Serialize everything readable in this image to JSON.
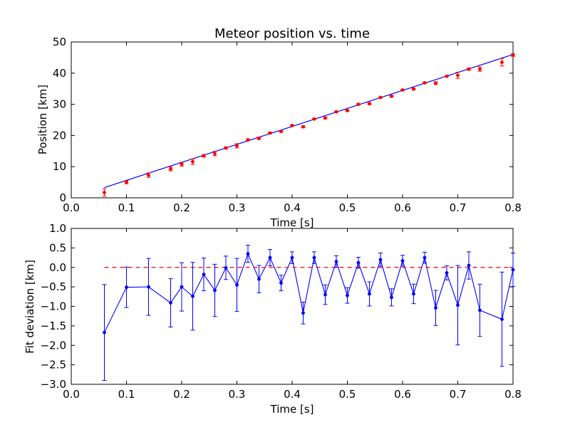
{
  "chart_data": [
    {
      "type": "scatter",
      "title": "Meteor position vs. time",
      "xlabel": "Time [s]",
      "ylabel": "Position [km]",
      "xlim": [
        0.0,
        0.8
      ],
      "ylim": [
        0,
        50
      ],
      "xticks": [
        "0.0",
        "0.1",
        "0.2",
        "0.3",
        "0.4",
        "0.5",
        "0.6",
        "0.7",
        "0.8"
      ],
      "yticks": [
        "0",
        "10",
        "20",
        "30",
        "40",
        "50"
      ],
      "grid": false,
      "colors": {
        "points": "#ff0000",
        "fit": "#0000ff"
      },
      "series": [
        {
          "kind": "errorbar-points",
          "x": [
            0.06,
            0.1,
            0.14,
            0.18,
            0.2,
            0.22,
            0.24,
            0.26,
            0.28,
            0.3,
            0.32,
            0.34,
            0.36,
            0.38,
            0.4,
            0.42,
            0.44,
            0.46,
            0.48,
            0.5,
            0.52,
            0.54,
            0.56,
            0.58,
            0.6,
            0.62,
            0.64,
            0.66,
            0.68,
            0.7,
            0.72,
            0.74,
            0.78,
            0.8
          ],
          "y": [
            1.7,
            5.0,
            7.3,
            9.3,
            10.8,
            11.6,
            13.5,
            14.2,
            16.0,
            16.7,
            18.6,
            19.1,
            20.8,
            21.3,
            23.2,
            22.8,
            25.3,
            25.6,
            27.6,
            28.0,
            30.0,
            30.2,
            32.2,
            32.6,
            34.6,
            34.9,
            36.9,
            36.8,
            39.0,
            39.3,
            41.3,
            41.3,
            43.5,
            45.8
          ],
          "yerr": [
            1.2,
            0.5,
            0.7,
            0.6,
            0.6,
            0.9,
            0.4,
            0.7,
            0.3,
            0.7,
            0.2,
            0.4,
            0.2,
            0.2,
            0.15,
            0.3,
            0.15,
            0.25,
            0.15,
            0.2,
            0.15,
            0.3,
            0.15,
            0.2,
            0.15,
            0.25,
            0.15,
            0.45,
            0.1,
            1.0,
            0.35,
            0.7,
            1.2,
            0.4
          ]
        },
        {
          "kind": "fit-line",
          "x": [
            0.06,
            0.8
          ],
          "y": [
            3.3,
            46.0
          ]
        }
      ]
    },
    {
      "type": "line",
      "title": "",
      "xlabel": "Time [s]",
      "ylabel": "Fit deviation [km]",
      "xlim": [
        0.0,
        0.8
      ],
      "ylim": [
        -3.0,
        1.0
      ],
      "xticks": [
        "0.0",
        "0.1",
        "0.2",
        "0.3",
        "0.4",
        "0.5",
        "0.6",
        "0.7",
        "0.8"
      ],
      "yticks": [
        "1.0",
        "0.5",
        "0.0",
        "−0.5",
        "−1.0",
        "−1.5",
        "−2.0",
        "−2.5",
        "−3.0"
      ],
      "grid": false,
      "colors": {
        "line": "#0000ff",
        "zero": "#ff0000"
      },
      "series": [
        {
          "kind": "errorbar-line",
          "x": [
            0.06,
            0.1,
            0.14,
            0.18,
            0.2,
            0.22,
            0.24,
            0.26,
            0.28,
            0.3,
            0.32,
            0.34,
            0.36,
            0.38,
            0.4,
            0.42,
            0.44,
            0.46,
            0.48,
            0.5,
            0.52,
            0.54,
            0.56,
            0.58,
            0.6,
            0.62,
            0.64,
            0.66,
            0.68,
            0.7,
            0.72,
            0.74,
            0.78,
            0.8
          ],
          "y": [
            -1.67,
            -0.51,
            -0.5,
            -0.91,
            -0.5,
            -0.74,
            -0.18,
            -0.59,
            -0.01,
            -0.45,
            0.35,
            -0.3,
            0.25,
            -0.4,
            0.25,
            -1.17,
            0.25,
            -0.7,
            0.15,
            -0.72,
            0.12,
            -0.68,
            0.2,
            -0.77,
            0.17,
            -0.68,
            0.25,
            -1.04,
            -0.14,
            -0.97,
            0.05,
            -1.1,
            -1.33,
            -0.06
          ],
          "yerr": [
            1.23,
            0.52,
            0.73,
            0.62,
            0.62,
            0.87,
            0.42,
            0.67,
            0.3,
            0.68,
            0.22,
            0.35,
            0.21,
            0.2,
            0.15,
            0.28,
            0.15,
            0.25,
            0.15,
            0.2,
            0.14,
            0.31,
            0.17,
            0.22,
            0.14,
            0.25,
            0.14,
            0.45,
            0.18,
            1.02,
            0.35,
            0.67,
            1.21,
            0.43
          ]
        },
        {
          "kind": "zero-line",
          "x": [
            0.06,
            0.8
          ],
          "y": [
            0.0,
            0.0
          ]
        }
      ]
    }
  ]
}
